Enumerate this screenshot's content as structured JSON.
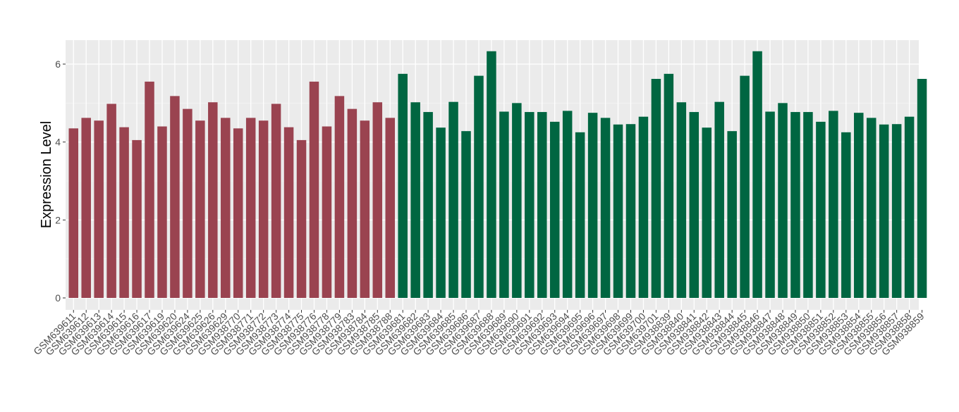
{
  "chart_data": {
    "type": "bar",
    "title": "",
    "xlabel": "",
    "ylabel": "Expression Level",
    "ylim": [
      0,
      6.6
    ],
    "yticks": [
      0,
      2,
      4,
      6
    ],
    "grid": true,
    "legend": "none",
    "group_colors": [
      "#9A4350",
      "#006641"
    ],
    "categories": [
      "GSM639611",
      "GSM639612",
      "GSM639613",
      "GSM639614",
      "GSM639615",
      "GSM639616",
      "GSM639617",
      "GSM639619",
      "GSM639620",
      "GSM639624",
      "GSM639625",
      "GSM639626",
      "GSM639629",
      "GSM938770",
      "GSM938771",
      "GSM938772",
      "GSM938773",
      "GSM938774",
      "GSM938775",
      "GSM938776",
      "GSM938778",
      "GSM938779",
      "GSM938783",
      "GSM938784",
      "GSM938785",
      "GSM938788",
      "GSM639681",
      "GSM639682",
      "GSM639683",
      "GSM639684",
      "GSM639685",
      "GSM639686",
      "GSM639687",
      "GSM639688",
      "GSM639689",
      "GSM639690",
      "GSM639691",
      "GSM639692",
      "GSM639693",
      "GSM639694",
      "GSM639695",
      "GSM639696",
      "GSM639697",
      "GSM639698",
      "GSM639699",
      "GSM639700",
      "GSM639701",
      "GSM938839",
      "GSM938840",
      "GSM938841",
      "GSM938842",
      "GSM938843",
      "GSM938844",
      "GSM938845",
      "GSM938846",
      "GSM938847",
      "GSM938848",
      "GSM938849",
      "GSM938850",
      "GSM938851",
      "GSM938852",
      "GSM938853",
      "GSM938854",
      "GSM938855",
      "GSM938856",
      "GSM938857",
      "GSM938858",
      "GSM938859"
    ],
    "values": [
      4.35,
      4.62,
      4.55,
      4.98,
      4.38,
      4.05,
      5.55,
      4.4,
      5.18,
      4.85,
      4.55,
      5.02,
      4.62,
      4.35,
      4.62,
      4.55,
      4.98,
      4.38,
      4.05,
      5.55,
      4.4,
      5.18,
      4.85,
      4.55,
      5.02,
      4.62,
      5.75,
      5.02,
      4.77,
      4.37,
      5.03,
      4.28,
      5.7,
      6.33,
      4.78,
      5.0,
      4.77,
      4.77,
      4.52,
      4.8,
      4.25,
      4.75,
      4.62,
      4.45,
      4.46,
      4.65,
      5.62,
      5.75,
      5.02,
      4.77,
      4.37,
      5.03,
      4.28,
      5.7,
      6.33,
      4.78,
      5.0,
      4.77,
      4.77,
      4.52,
      4.8,
      4.25,
      4.75,
      4.62,
      4.45,
      4.46,
      4.65,
      5.62
    ],
    "groups": [
      0,
      0,
      0,
      0,
      0,
      0,
      0,
      0,
      0,
      0,
      0,
      0,
      0,
      0,
      0,
      0,
      0,
      0,
      0,
      0,
      0,
      0,
      0,
      0,
      0,
      0,
      1,
      1,
      1,
      1,
      1,
      1,
      1,
      1,
      1,
      1,
      1,
      1,
      1,
      1,
      1,
      1,
      1,
      1,
      1,
      1,
      1,
      1,
      1,
      1,
      1,
      1,
      1,
      1,
      1,
      1,
      1,
      1,
      1,
      1,
      1,
      1,
      1,
      1,
      1,
      1,
      1,
      1
    ]
  }
}
